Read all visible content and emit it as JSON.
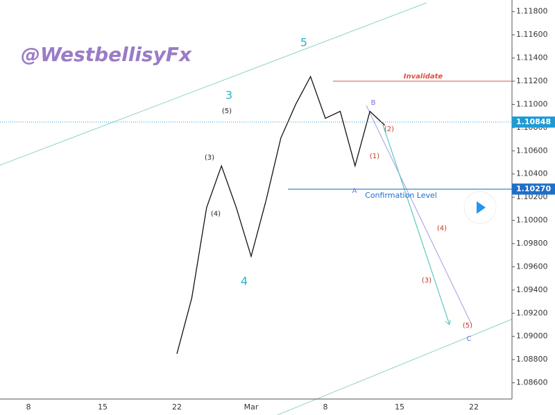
{
  "chart_data": {
    "type": "line",
    "watermark": "@WestbellisyFx",
    "categories": [
      "8",
      null,
      null,
      null,
      null,
      "15",
      null,
      null,
      null,
      null,
      "22",
      null,
      null,
      null,
      null,
      "Mar",
      null,
      null,
      null,
      null,
      "8",
      null,
      null,
      null,
      null,
      "15",
      null,
      null,
      null,
      null,
      "22",
      null,
      null,
      null,
      null
    ],
    "series": [
      {
        "color": "#111111",
        "values": [
          null,
          null,
          null,
          null,
          null,
          null,
          null,
          null,
          null,
          null,
          1.0885,
          1.0933,
          1.1011,
          1.1047,
          1.1011,
          1.0969,
          1.1017,
          1.1071,
          1.11,
          1.1124,
          1.1088,
          1.1094,
          1.1047,
          1.1094,
          1.1082,
          null,
          null,
          null,
          null,
          null,
          null,
          null,
          null,
          null,
          null
        ]
      }
    ],
    "ylim": [
      1.0846,
      1.119
    ],
    "yticks": [
      {
        "value": 1.086,
        "label": "1.08600"
      },
      {
        "value": 1.088,
        "label": "1.08800"
      },
      {
        "value": 1.09,
        "label": "1.09000"
      },
      {
        "value": 1.092,
        "label": "1.09200"
      },
      {
        "value": 1.094,
        "label": "1.09400"
      },
      {
        "value": 1.096,
        "label": "1.09600"
      },
      {
        "value": 1.098,
        "label": "1.09800"
      },
      {
        "value": 1.1,
        "label": "1.10000"
      },
      {
        "value": 1.102,
        "label": "1.10200"
      },
      {
        "value": 1.104,
        "label": "1.10400"
      },
      {
        "value": 1.106,
        "label": "1.10600"
      },
      {
        "value": 1.108,
        "label": "1.10800"
      },
      {
        "value": 1.11,
        "label": "1.11000"
      },
      {
        "value": 1.112,
        "label": "1.11200"
      },
      {
        "value": 1.114,
        "label": "1.11400"
      },
      {
        "value": 1.116,
        "label": "1.11600"
      },
      {
        "value": 1.118,
        "label": "1.11800"
      }
    ],
    "grid": false,
    "price_lines": [
      {
        "value": 1.10848,
        "label": "1.10848",
        "color": "#1e9bd7",
        "style": "dotted"
      },
      {
        "value": 1.1027,
        "label": "1.10270",
        "color": "#1e6fc8",
        "style": "solid",
        "text": "Confirmation Level"
      },
      {
        "value": 1.112,
        "color": "#e0503a",
        "style": "solid",
        "text": "Invalidate"
      }
    ],
    "annotations": [
      {
        "text": "5",
        "color": "#26b5c4"
      },
      {
        "text": "3",
        "color": "#26b5c4"
      },
      {
        "text": "4",
        "color": "#26b5c4"
      },
      {
        "text": "(5)",
        "color": "#222222"
      },
      {
        "text": "(3)",
        "color": "#222222"
      },
      {
        "text": "(4)",
        "color": "#222222"
      },
      {
        "text": "A",
        "color": "#7a6fd0"
      },
      {
        "text": "B",
        "color": "#7a6fd0"
      },
      {
        "text": "C",
        "color": "#7a6fd0"
      },
      {
        "text": "(1)",
        "color": "#c0392b"
      },
      {
        "text": "(2)",
        "color": "#c0392b"
      },
      {
        "text": "(4)",
        "color": "#c0392b"
      },
      {
        "text": "(3)",
        "color": "#c0392b"
      },
      {
        "text": "(5)",
        "color": "#c0392b"
      }
    ]
  }
}
